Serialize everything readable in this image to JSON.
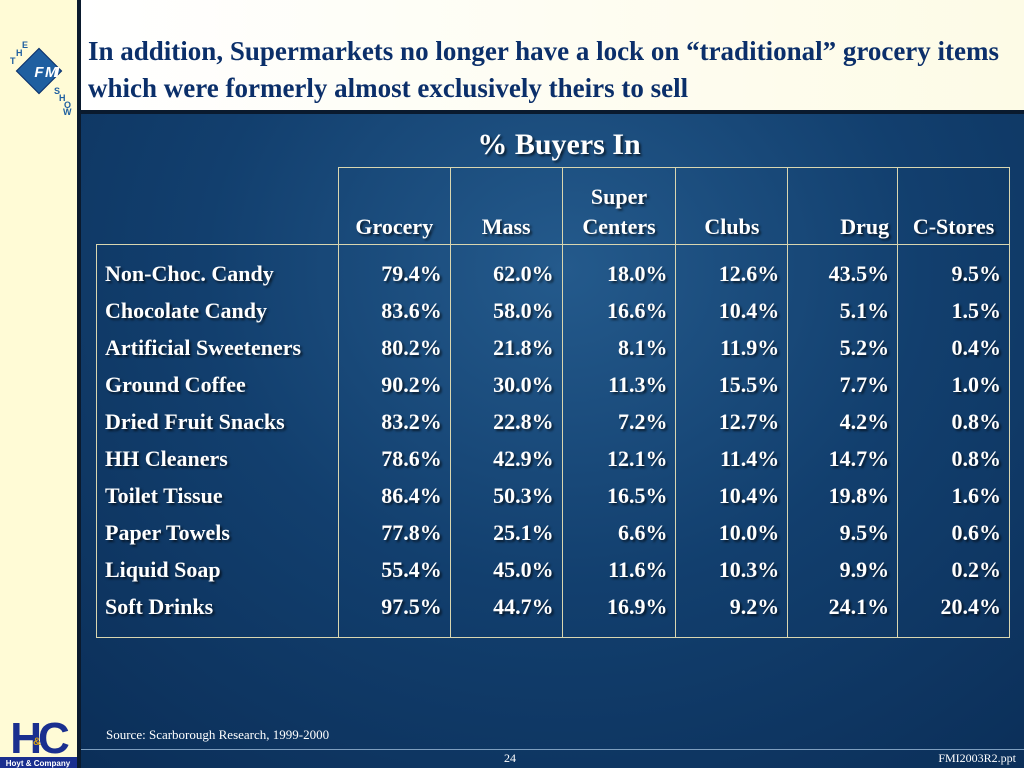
{
  "slide": {
    "title": "In addition, Supermarkets no longer have a lock on “traditional” grocery items which were formerly almost exclusively theirs to sell",
    "table_title": "% Buyers In",
    "source": "Source:  Scarborough Research, 1999-2000",
    "page_number": "24",
    "file_name": "FMI2003R2.ppt"
  },
  "logos": {
    "fmi": {
      "letters": [
        "T",
        "H",
        "E",
        "F",
        "M",
        "I",
        "S",
        "H",
        "O",
        "W"
      ]
    },
    "hoyt": {
      "mark": "HC",
      "amp": "&",
      "name": "Hoyt & Company"
    }
  },
  "table": {
    "columns": [
      "Grocery",
      "Mass",
      "Super Centers",
      "Clubs",
      "Drug",
      "C-Stores"
    ],
    "column_lines": [
      [
        "Grocery"
      ],
      [
        "Mass"
      ],
      [
        "Super",
        "Centers"
      ],
      [
        "Clubs"
      ],
      [
        "Drug"
      ],
      [
        "C-Stores"
      ]
    ],
    "rows": [
      {
        "label": "Non-Choc. Candy",
        "values": [
          "79.4%",
          "62.0%",
          "18.0%",
          "12.6%",
          "43.5%",
          "9.5%"
        ]
      },
      {
        "label": "Chocolate Candy",
        "values": [
          "83.6%",
          "58.0%",
          "16.6%",
          "10.4%",
          "5.1%",
          "1.5%"
        ]
      },
      {
        "label": "Artificial Sweeteners",
        "values": [
          "80.2%",
          "21.8%",
          "8.1%",
          "11.9%",
          "5.2%",
          "0.4%"
        ]
      },
      {
        "label": "Ground Coffee",
        "values": [
          "90.2%",
          "30.0%",
          "11.3%",
          "15.5%",
          "7.7%",
          "1.0%"
        ]
      },
      {
        "label": "Dried Fruit Snacks",
        "values": [
          "83.2%",
          "22.8%",
          "7.2%",
          "12.7%",
          "4.2%",
          "0.8%"
        ]
      },
      {
        "label": "HH Cleaners",
        "values": [
          "78.6%",
          "42.9%",
          "12.1%",
          "11.4%",
          "14.7%",
          "0.8%"
        ]
      },
      {
        "label": "Toilet Tissue",
        "values": [
          "86.4%",
          "50.3%",
          "16.5%",
          "10.4%",
          "19.8%",
          "1.6%"
        ]
      },
      {
        "label": "Paper Towels",
        "values": [
          "77.8%",
          "25.1%",
          "6.6%",
          "10.0%",
          "9.5%",
          "0.6%"
        ]
      },
      {
        "label": "Liquid Soap",
        "values": [
          "55.4%",
          "45.0%",
          "11.6%",
          "10.3%",
          "9.9%",
          "0.2%"
        ]
      },
      {
        "label": "Soft Drinks",
        "values": [
          "97.5%",
          "44.7%",
          "16.9%",
          "9.2%",
          "24.1%",
          "20.4%"
        ]
      }
    ]
  },
  "chart_data": {
    "type": "table",
    "title": "% Buyers In",
    "columns": [
      "Grocery",
      "Mass",
      "Super Centers",
      "Clubs",
      "Drug",
      "C-Stores"
    ],
    "rows": [
      {
        "category": "Non-Choc. Candy",
        "values": [
          79.4,
          62.0,
          18.0,
          12.6,
          43.5,
          9.5
        ]
      },
      {
        "category": "Chocolate Candy",
        "values": [
          83.6,
          58.0,
          16.6,
          10.4,
          5.1,
          1.5
        ]
      },
      {
        "category": "Artificial Sweeteners",
        "values": [
          80.2,
          21.8,
          8.1,
          11.9,
          5.2,
          0.4
        ]
      },
      {
        "category": "Ground Coffee",
        "values": [
          90.2,
          30.0,
          11.3,
          15.5,
          7.7,
          1.0
        ]
      },
      {
        "category": "Dried Fruit Snacks",
        "values": [
          83.2,
          22.8,
          7.2,
          12.7,
          4.2,
          0.8
        ]
      },
      {
        "category": "HH Cleaners",
        "values": [
          78.6,
          42.9,
          12.1,
          11.4,
          14.7,
          0.8
        ]
      },
      {
        "category": "Toilet Tissue",
        "values": [
          86.4,
          50.3,
          16.5,
          10.4,
          19.8,
          1.6
        ]
      },
      {
        "category": "Paper Towels",
        "values": [
          77.8,
          25.1,
          6.6,
          10.0,
          9.5,
          0.6
        ]
      },
      {
        "category": "Liquid Soap",
        "values": [
          55.4,
          45.0,
          11.6,
          10.3,
          9.9,
          0.2
        ]
      },
      {
        "category": "Soft Drinks",
        "values": [
          97.5,
          44.7,
          16.9,
          9.2,
          24.1,
          20.4
        ]
      }
    ],
    "source": "Source:  Scarborough Research, 1999-2000"
  },
  "colors": {
    "background": "#123f6e",
    "title_text": "#0b2f6a",
    "title_bar": "#ffffff",
    "left_band": "#fffbd6",
    "table_rule": "#d9d6b0",
    "fmi_diamond": "#1f5fa0",
    "hoyt_brand": "#1a2f8f"
  }
}
